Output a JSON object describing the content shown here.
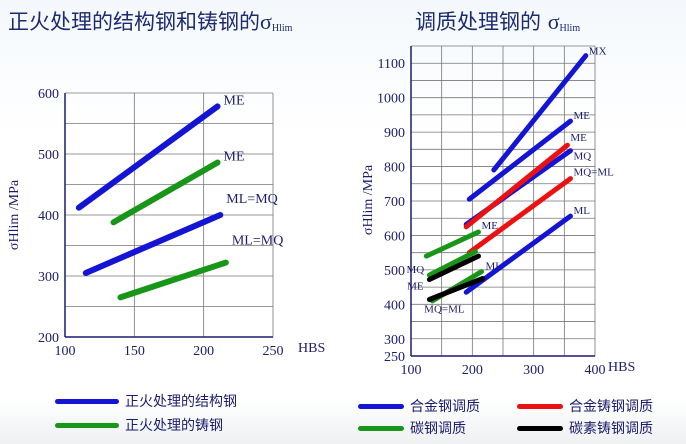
{
  "colors": {
    "blue": "#1414d4",
    "green": "#179617",
    "red": "#ec1010",
    "black": "#000000",
    "text": "#1c1c6e",
    "grid": "#777777"
  },
  "titles": {
    "left": {
      "text": "正火处理的结构钢和铸钢的",
      "sigma": "σ",
      "sub": "Hlim"
    },
    "right": {
      "text": "调质处理钢的 ",
      "sigma": "σ",
      "sub": "Hlim"
    }
  },
  "chart_data": [
    {
      "type": "line",
      "title": "正火处理的结构钢和铸钢的σHlim",
      "xlabel": "HBS",
      "ylabel": "σHlim /MPa",
      "xlim": [
        100,
        250
      ],
      "ylim": [
        200,
        600
      ],
      "xticks": [
        100,
        150,
        200,
        250
      ],
      "yticks": [
        200,
        300,
        400,
        500,
        600
      ],
      "grid": true,
      "series": [
        {
          "name": "正火处理的结构钢",
          "label": "ME",
          "color": "blue",
          "x": [
            110,
            210
          ],
          "y": [
            412,
            578
          ]
        },
        {
          "name": "正火处理的铸钢",
          "label": "ME",
          "color": "green",
          "x": [
            135,
            210
          ],
          "y": [
            388,
            486
          ]
        },
        {
          "name": "正火处理的结构钢",
          "label": "ML=MQ",
          "color": "blue",
          "x": [
            115,
            212
          ],
          "y": [
            305,
            400
          ]
        },
        {
          "name": "正火处理的铸钢",
          "label": "ML=MQ",
          "color": "green",
          "x": [
            140,
            216
          ],
          "y": [
            265,
            322
          ]
        }
      ],
      "legend": [
        {
          "name": "正火处理的结构钢",
          "color": "blue"
        },
        {
          "name": "正火处理的铸钢",
          "color": "green"
        }
      ]
    },
    {
      "type": "line",
      "title": "调质处理钢的 σHlim",
      "xlabel": "HBS",
      "ylabel": "σHlim /MPa",
      "xlim": [
        100,
        400
      ],
      "ylim": [
        250,
        1150
      ],
      "xticks": [
        100,
        200,
        300,
        400
      ],
      "yticks": [
        250,
        300,
        400,
        500,
        600,
        700,
        800,
        900,
        1000,
        1100
      ],
      "grid": true,
      "series": [
        {
          "name": "合金钢调质",
          "label": "MX",
          "color": "blue",
          "x": [
            235,
            385
          ],
          "y": [
            790,
            1122
          ]
        },
        {
          "name": "合金钢调质",
          "label": "ME",
          "color": "blue",
          "x": [
            195,
            360
          ],
          "y": [
            705,
            932
          ]
        },
        {
          "name": "合金钢调质",
          "label": "MQ",
          "color": "blue",
          "x": [
            190,
            360
          ],
          "y": [
            632,
            846
          ]
        },
        {
          "name": "合金钢调质",
          "label": "ML",
          "color": "blue",
          "x": [
            190,
            360
          ],
          "y": [
            435,
            656
          ]
        },
        {
          "name": "合金铸钢调质",
          "label": "ME",
          "color": "red",
          "x": [
            190,
            355
          ],
          "y": [
            625,
            862
          ]
        },
        {
          "name": "合金铸钢调质",
          "label": "MQ=ML",
          "color": "red",
          "x": [
            195,
            360
          ],
          "y": [
            550,
            765
          ]
        },
        {
          "name": "碳钢调质",
          "label": "ME",
          "color": "green",
          "x": [
            125,
            210
          ],
          "y": [
            540,
            610
          ]
        },
        {
          "name": "碳钢调质",
          "label": "MQ",
          "color": "green",
          "x": [
            130,
            205
          ],
          "y": [
            485,
            553
          ]
        },
        {
          "name": "碳钢调质",
          "label": "ML",
          "color": "green",
          "x": [
            135,
            215
          ],
          "y": [
            410,
            495
          ]
        },
        {
          "name": "碳素铸钢调质",
          "label": "ME",
          "color": "black",
          "x": [
            130,
            210
          ],
          "y": [
            472,
            540
          ]
        },
        {
          "name": "碳素铸钢调质",
          "label": "MQ=ML",
          "color": "black",
          "x": [
            130,
            217
          ],
          "y": [
            414,
            475
          ]
        }
      ],
      "legend": [
        {
          "name": "合金钢调质",
          "color": "blue"
        },
        {
          "name": "合金铸钢调质",
          "color": "red"
        },
        {
          "name": "碳钢调质",
          "color": "green"
        },
        {
          "name": "碳素铸钢调质",
          "color": "black"
        }
      ]
    }
  ]
}
